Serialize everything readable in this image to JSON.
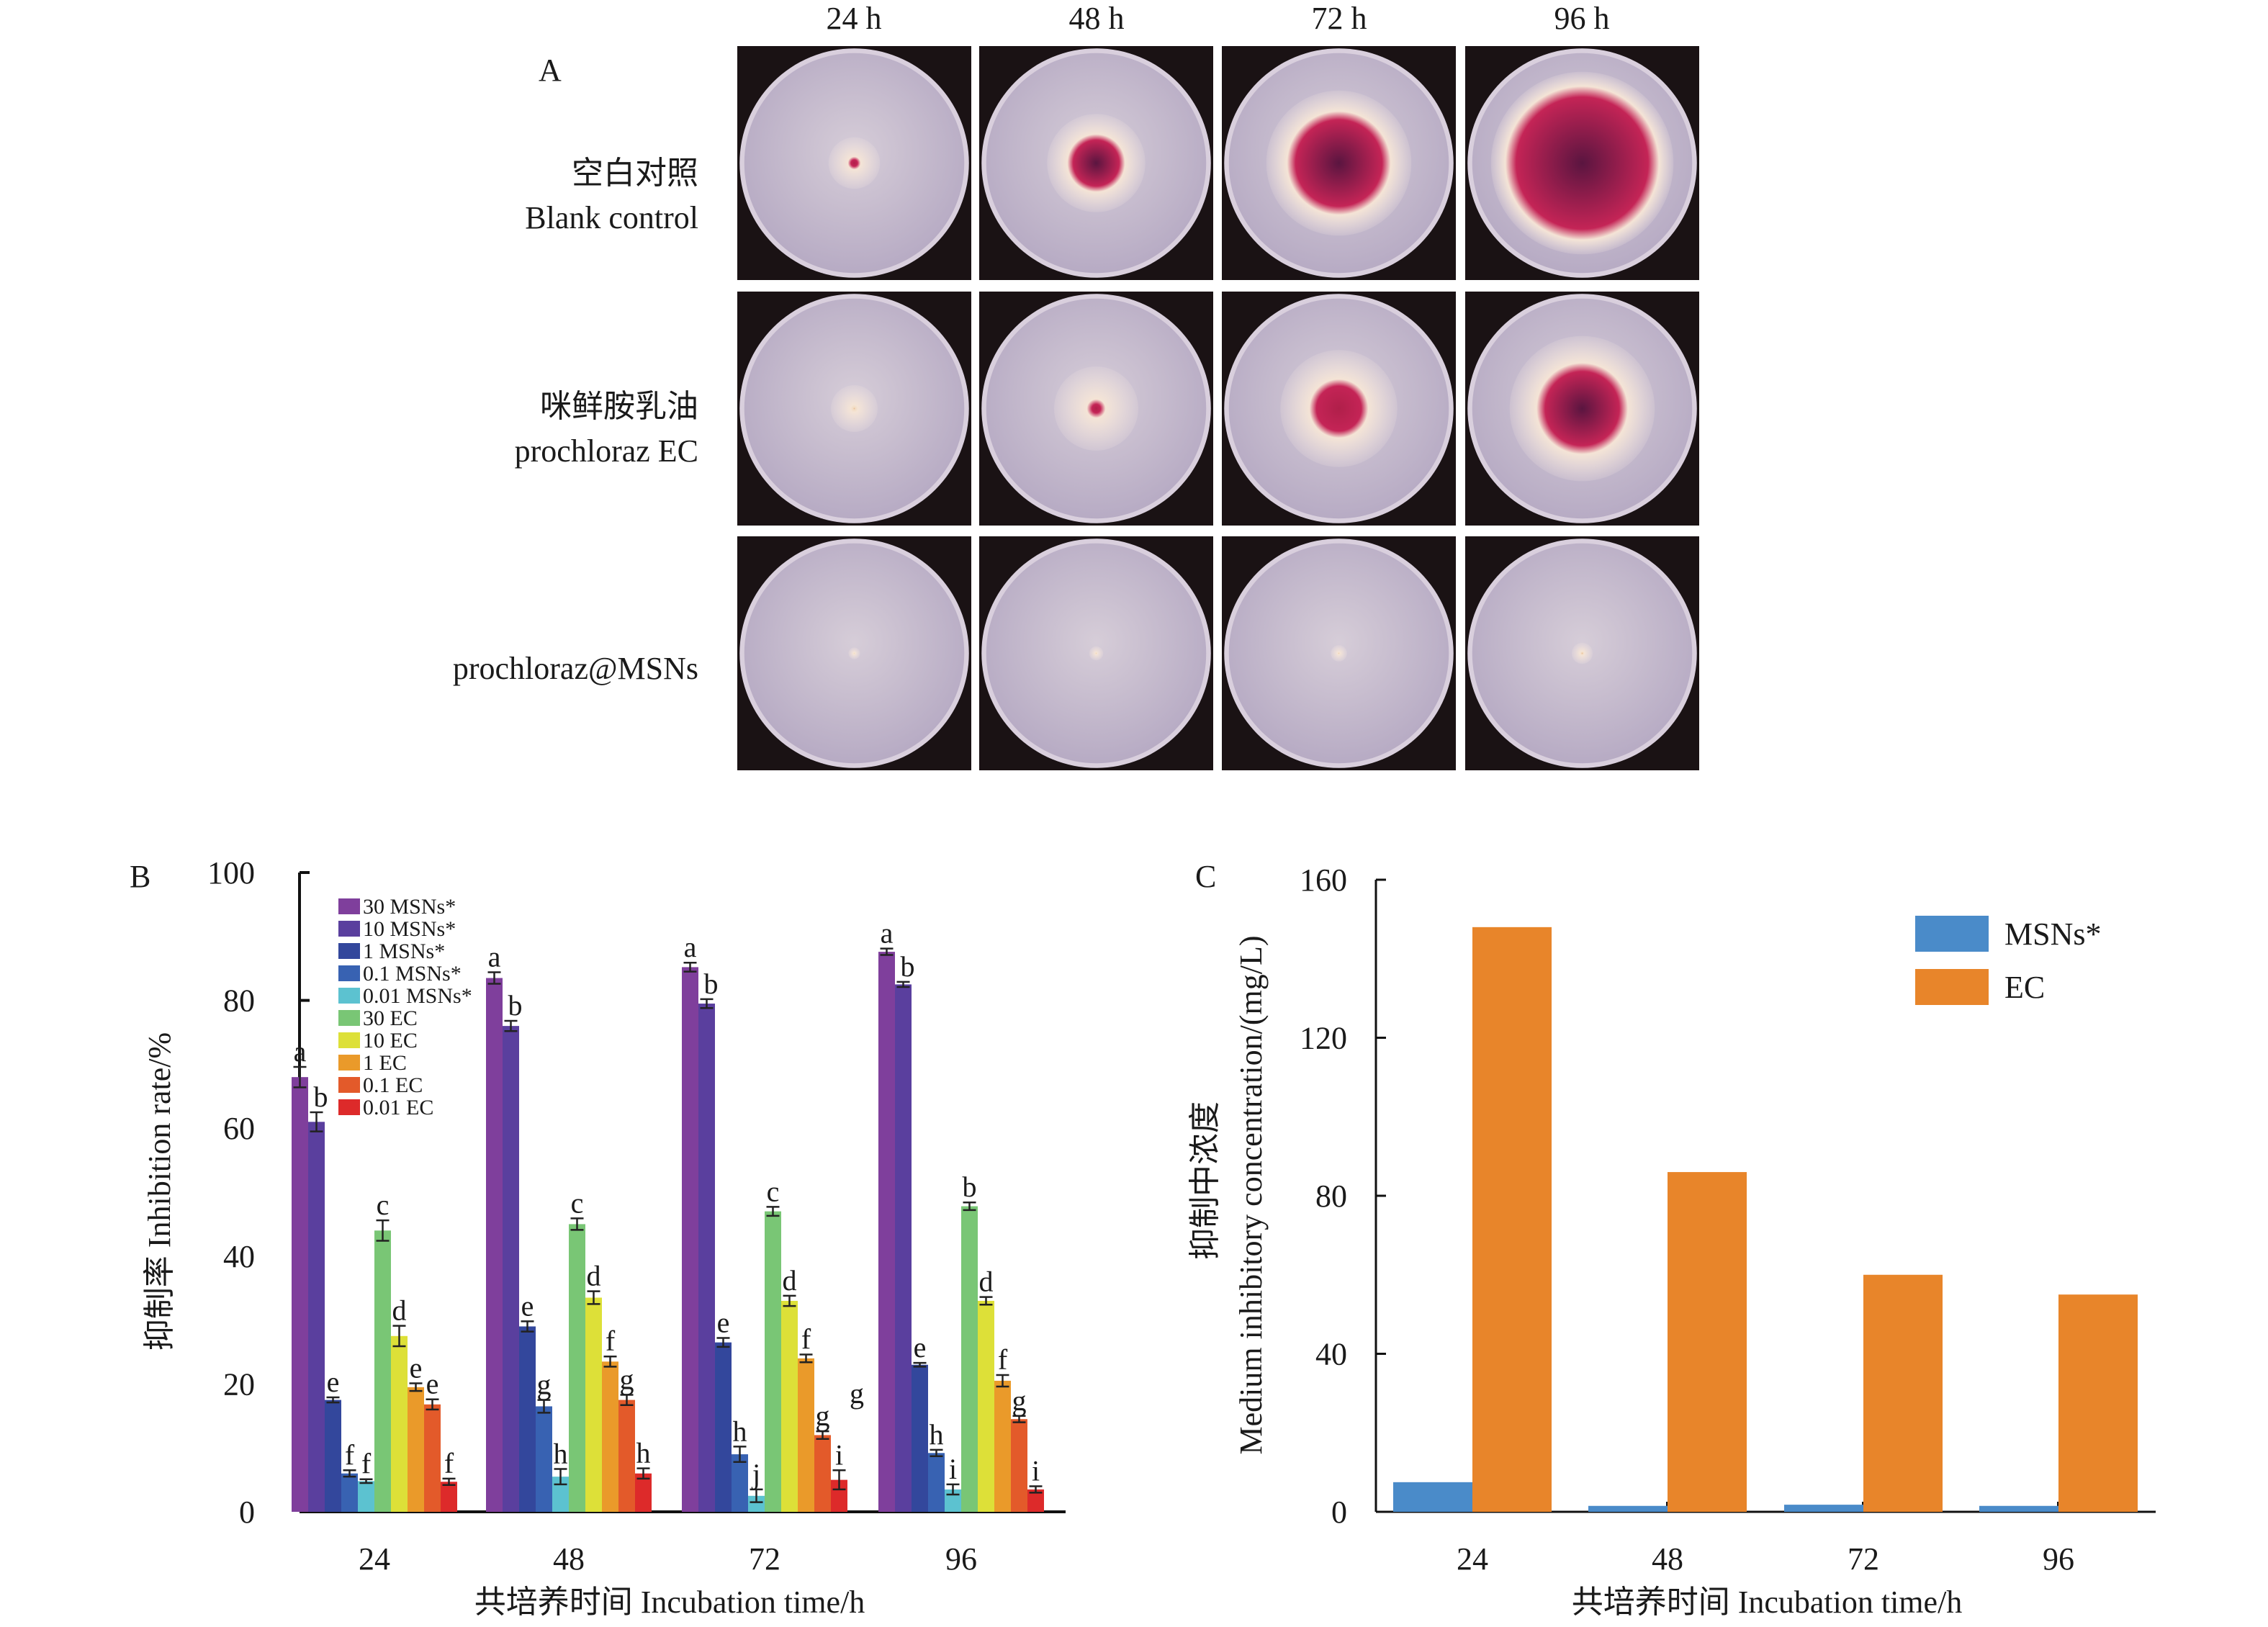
{
  "panel_a": {
    "letter": "A",
    "time_headers": [
      "24 h",
      "48 h",
      "72 h",
      "96 h"
    ],
    "rows": [
      {
        "label_cn": "空白对照",
        "label_en": "Blank control",
        "colony_growth": [
          0.22,
          0.42,
          0.62,
          0.78
        ],
        "pigment": [
          0.15,
          0.55,
          0.7,
          0.85
        ]
      },
      {
        "label_cn": "咪鲜胺乳油",
        "label_en": "prochloraz EC",
        "colony_growth": [
          0.2,
          0.36,
          0.5,
          0.62
        ],
        "pigment": [
          0.05,
          0.12,
          0.45,
          0.6
        ]
      },
      {
        "label_cn": "",
        "label_en": "prochloraz@MSNs",
        "colony_growth": [
          0.05,
          0.06,
          0.07,
          0.09
        ],
        "pigment": [
          0,
          0,
          0,
          0.1
        ]
      }
    ]
  },
  "chart_data": [
    {
      "panel": "B",
      "type": "bar",
      "title": "",
      "xlabel": "共培养时间 Incubation time/h",
      "ylabel": "抑制率 Inhibition rate/%",
      "categories": [
        "24",
        "48",
        "72",
        "96"
      ],
      "ylim": [
        0,
        100
      ],
      "yticks": [
        0,
        20,
        40,
        60,
        80,
        100
      ],
      "legend_position": "top-left",
      "series": [
        {
          "name": "30 MSNs*",
          "color": "#7f3f9c",
          "values": [
            68.0,
            83.5,
            85.2,
            87.6
          ],
          "errors": [
            1.6,
            0.9,
            0.7,
            0.5
          ],
          "letters": [
            "a",
            "a",
            "a",
            "a"
          ]
        },
        {
          "name": "10 MSNs*",
          "color": "#5a3f9e",
          "values": [
            61.0,
            76.0,
            79.5,
            82.5
          ],
          "errors": [
            1.5,
            0.8,
            0.7,
            0.4
          ],
          "letters": [
            "b",
            "b",
            "b",
            "b"
          ]
        },
        {
          "name": "1 MSNs*",
          "color": "#33479c",
          "values": [
            17.5,
            29.0,
            26.5,
            23.0
          ],
          "errors": [
            0.4,
            0.8,
            0.7,
            0.3
          ],
          "letters": [
            "e",
            "e",
            "e",
            "e"
          ]
        },
        {
          "name": "0.1 MSNs*",
          "color": "#3862b2",
          "values": [
            6.0,
            16.5,
            9.0,
            9.2
          ],
          "errors": [
            0.5,
            1.0,
            1.2,
            0.5
          ],
          "letters": [
            "f",
            "g",
            "h",
            "h"
          ]
        },
        {
          "name": "0.01 MSNs*",
          "color": "#5cc2d0",
          "values": [
            4.8,
            5.5,
            2.5,
            3.5
          ],
          "errors": [
            0.3,
            1.2,
            1.0,
            0.8
          ],
          "letters": [
            "f",
            "h",
            "j",
            "i"
          ]
        },
        {
          "name": "30 EC",
          "color": "#79c675",
          "values": [
            44.0,
            45.0,
            47.0,
            47.8
          ],
          "errors": [
            1.6,
            0.9,
            0.7,
            0.6
          ],
          "letters": [
            "c",
            "c",
            "c",
            "b"
          ]
        },
        {
          "name": "10 EC",
          "color": "#dde038",
          "values": [
            27.5,
            33.5,
            33.0,
            33.0
          ],
          "errors": [
            1.6,
            1.0,
            0.8,
            0.6
          ],
          "letters": [
            "d",
            "d",
            "d",
            "d"
          ]
        },
        {
          "name": "1 EC",
          "color": "#ea9a2a",
          "values": [
            19.5,
            23.5,
            24.0,
            20.5
          ],
          "errors": [
            0.6,
            0.8,
            0.6,
            0.9
          ],
          "letters": [
            "e",
            "f",
            "f",
            "f"
          ]
        },
        {
          "name": "0.1 EC",
          "color": "#e35a2a",
          "values": [
            16.8,
            17.5,
            12.0,
            14.5
          ],
          "errors": [
            0.8,
            0.8,
            0.6,
            0.5
          ],
          "letters": [
            "e",
            "g",
            "g",
            "g"
          ]
        },
        {
          "name": "0.01 EC",
          "color": "#dd2a2a",
          "values": [
            4.7,
            6.0,
            5.0,
            3.5
          ],
          "errors": [
            0.5,
            0.8,
            1.5,
            0.5
          ],
          "letters": [
            "f",
            "h",
            "i",
            "i"
          ]
        }
      ],
      "stray_annotations": [
        {
          "text": "g",
          "near_category": "72"
        }
      ]
    },
    {
      "panel": "C",
      "type": "bar",
      "title": "",
      "xlabel": "共培养时间 Incubation time/h",
      "ylabel_cn": "抑制中浓度",
      "ylabel": "Medium inhibitory concentration/(mg/L)",
      "categories": [
        "24",
        "48",
        "72",
        "96"
      ],
      "ylim": [
        0,
        160
      ],
      "yticks": [
        0,
        40,
        80,
        120,
        160
      ],
      "legend_position": "top-right",
      "series": [
        {
          "name": "MSNs*",
          "color": "#4a8bc9",
          "values": [
            7.5,
            1.5,
            1.8,
            1.5
          ]
        },
        {
          "name": "EC",
          "color": "#e8852a",
          "values": [
            148,
            86,
            60,
            55
          ]
        }
      ]
    }
  ]
}
